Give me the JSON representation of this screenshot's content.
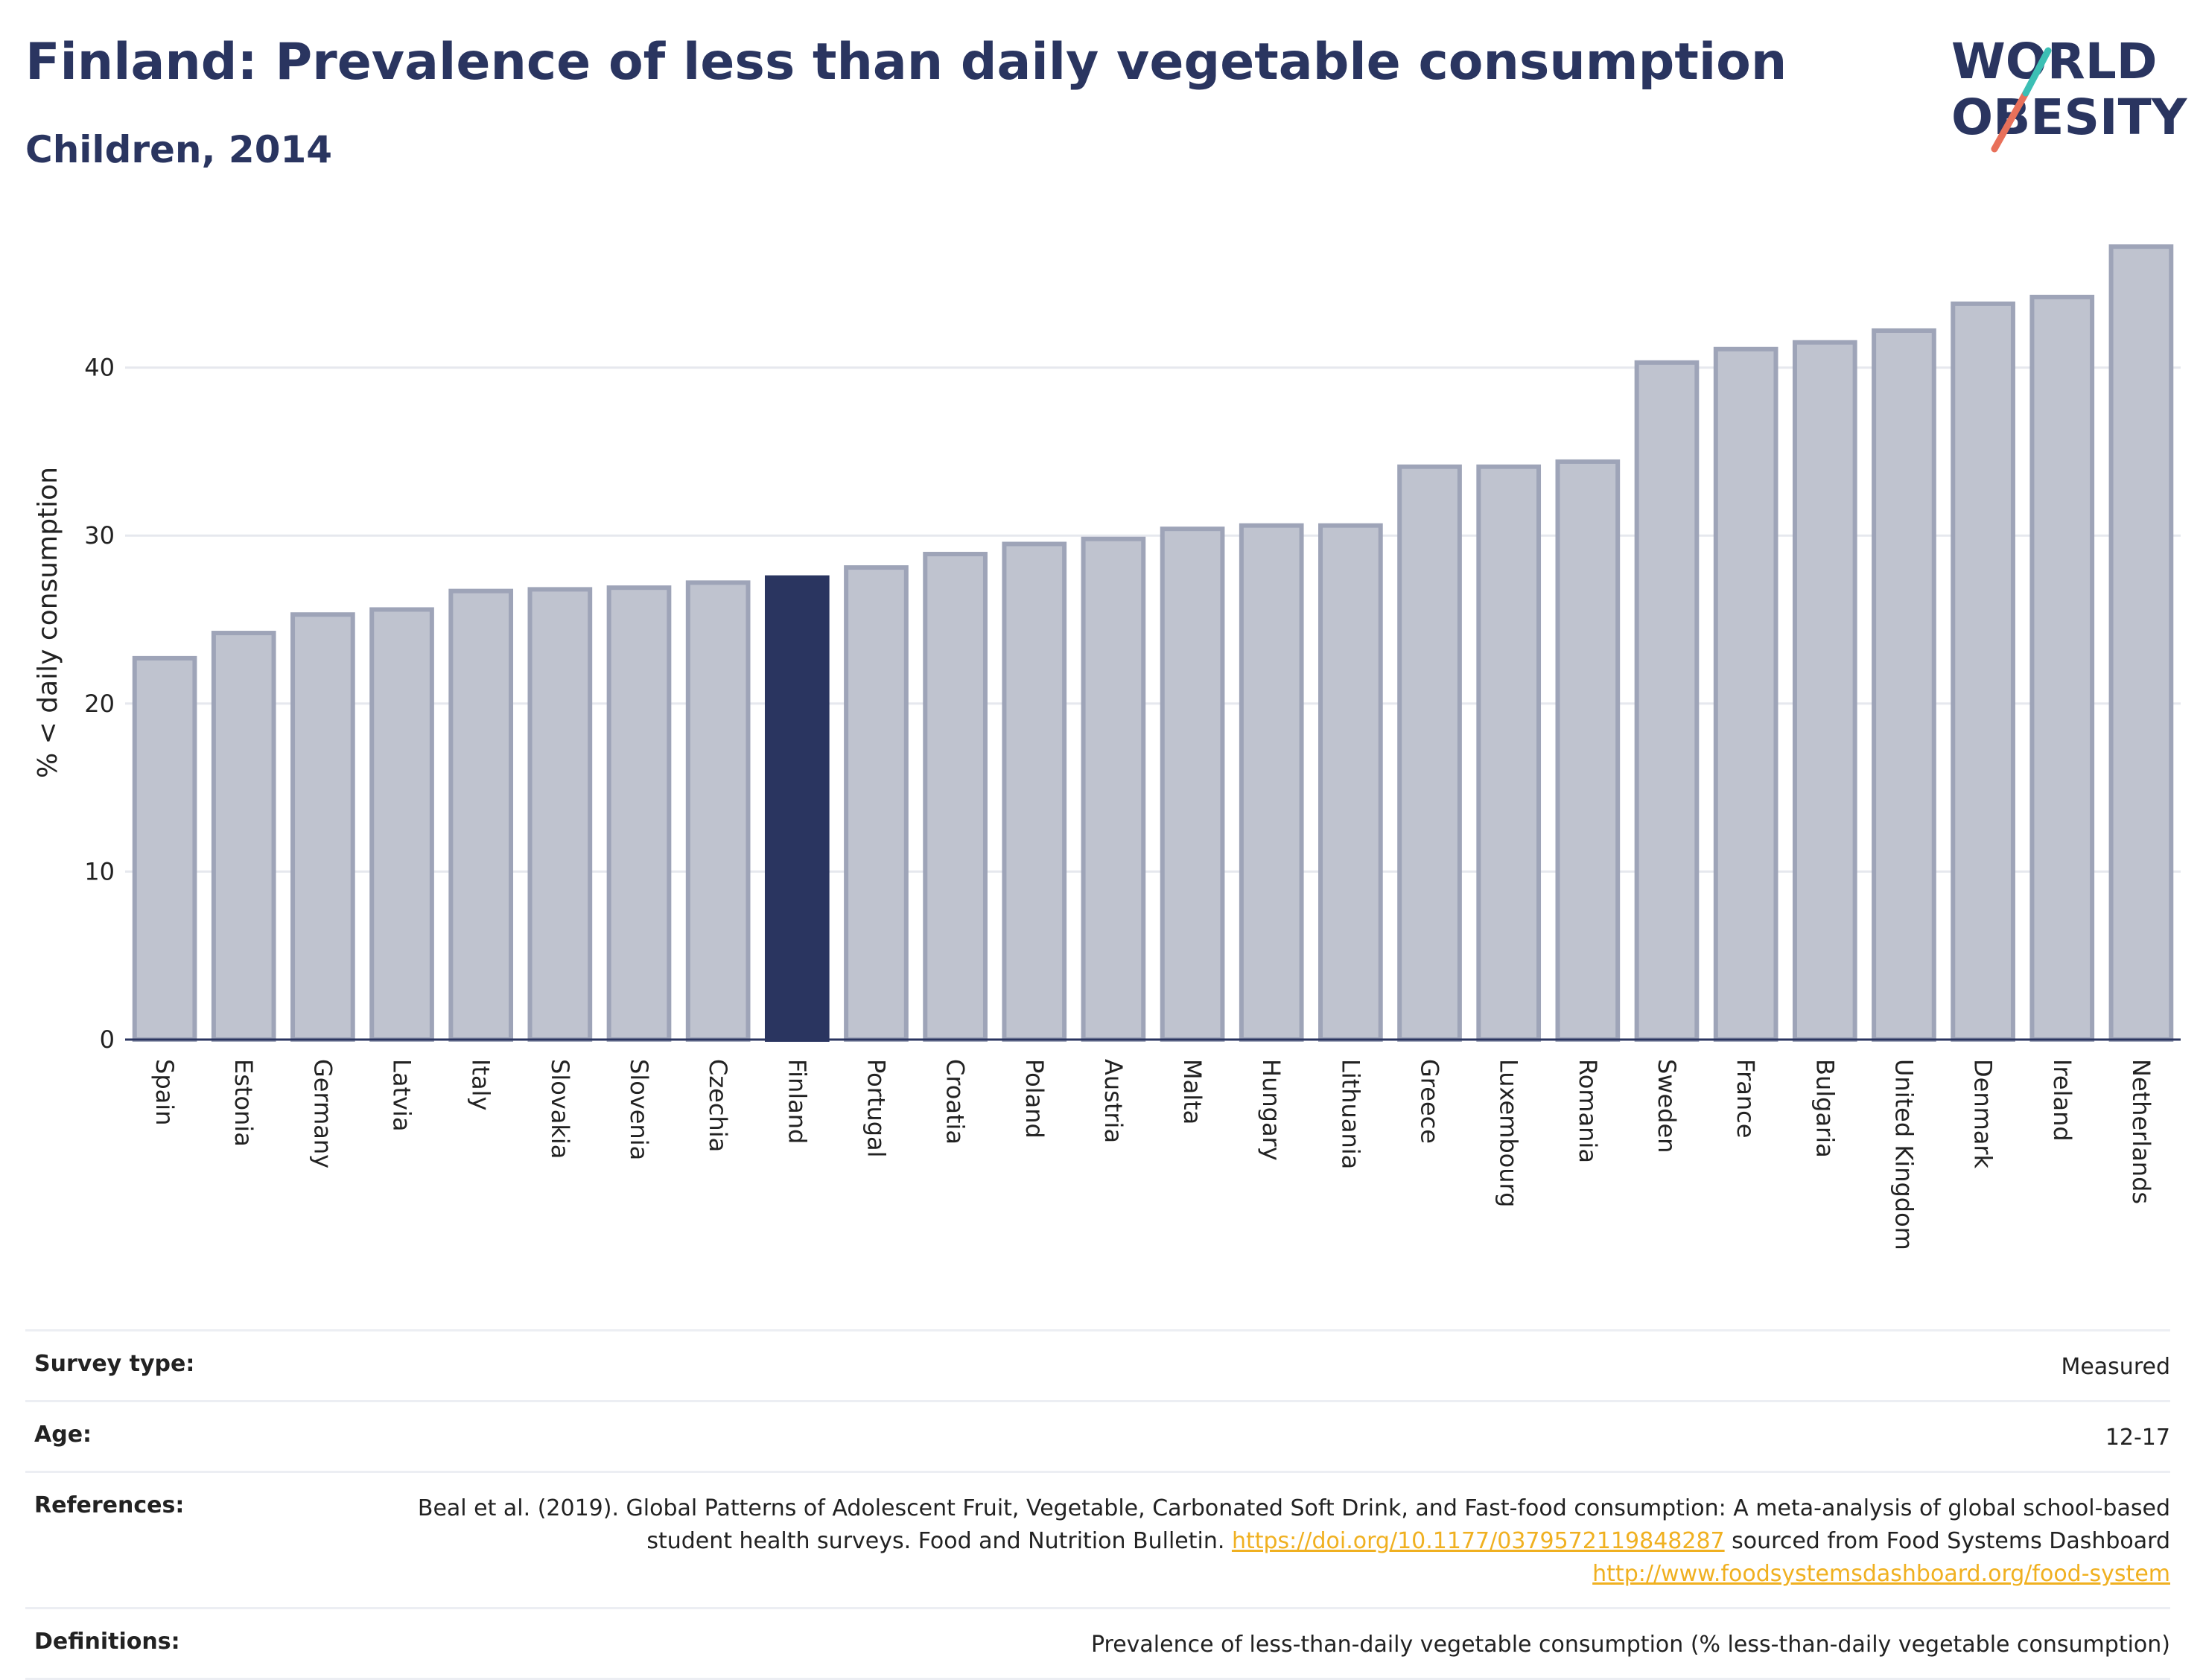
{
  "header": {
    "title": "Finland: Prevalence of less than daily vegetable consumption",
    "subtitle": "Children, 2014",
    "logo_line1": "WORLD",
    "logo_line2": "OBESITY"
  },
  "chart_data": {
    "type": "bar",
    "ylabel": "% < daily consumption",
    "ylim": [
      0,
      50
    ],
    "yticks": [
      0,
      10,
      20,
      30,
      40
    ],
    "grid": true,
    "highlight": "Finland",
    "colors": {
      "bar": "#bfc3cf",
      "bar_border": "#9ea4b8",
      "highlight": "#2a3560"
    },
    "categories": [
      "Spain",
      "Estonia",
      "Germany",
      "Latvia",
      "Italy",
      "Slovakia",
      "Slovenia",
      "Czechia",
      "Finland",
      "Portugal",
      "Croatia",
      "Poland",
      "Austria",
      "Malta",
      "Hungary",
      "Lithuania",
      "Greece",
      "Luxembourg",
      "Romania",
      "Sweden",
      "France",
      "Bulgaria",
      "United Kingdom",
      "Denmark",
      "Ireland",
      "Netherlands"
    ],
    "values": [
      22.7,
      24.2,
      25.3,
      25.6,
      26.7,
      26.8,
      26.9,
      27.2,
      27.5,
      28.1,
      28.9,
      29.5,
      29.8,
      30.4,
      30.6,
      30.6,
      34.1,
      34.1,
      34.4,
      40.3,
      41.1,
      41.5,
      42.2,
      43.8,
      44.2,
      47.2
    ]
  },
  "info": {
    "rows": [
      {
        "key": "Survey type:",
        "value": "Measured"
      },
      {
        "key": "Age:",
        "value": "12-17"
      }
    ],
    "references_key": "References:",
    "references_text1": "Beal et al. (2019). Global Patterns of Adolescent Fruit, Vegetable, Carbonated Soft Drink, and Fast-food consumption: A meta-analysis of global school-based student health surveys. Food and Nutrition Bulletin.",
    "references_link1": "https://doi.org/10.1177/0379572119848287",
    "references_text2": "sourced from Food Systems Dashboard",
    "references_link2": "http://www.foodsystemsdashboard.org/food-system",
    "definitions_key": "Definitions:",
    "definitions_value": "Prevalence of less-than-daily vegetable consumption (% less-than-daily vegetable consumption)"
  }
}
